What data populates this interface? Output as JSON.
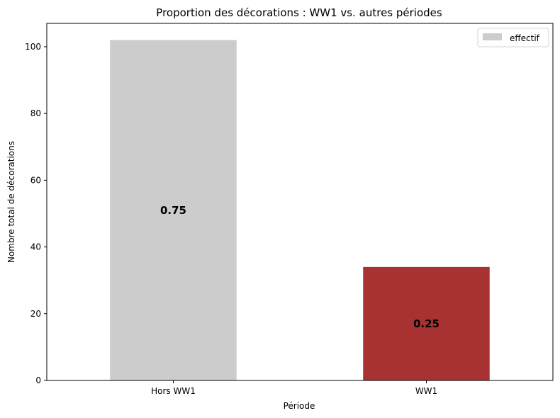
{
  "chart_data": {
    "type": "bar",
    "title": "Proportion des décorations : WW1 vs. autres périodes",
    "xlabel": "Période",
    "ylabel": "Nombre total de décorations",
    "categories": [
      "Hors WW1",
      "WW1"
    ],
    "values": [
      102,
      34
    ],
    "proportion_labels": [
      "0.75",
      "0.25"
    ],
    "bar_colors": [
      "#cccccc",
      "#a83232"
    ],
    "ylim": [
      0,
      107
    ],
    "yticks": [
      0,
      20,
      40,
      60,
      80,
      100
    ],
    "grid": false,
    "legend": {
      "position": "top-right",
      "entries": [
        {
          "label": "effectif",
          "color": "#cccccc"
        }
      ]
    }
  }
}
